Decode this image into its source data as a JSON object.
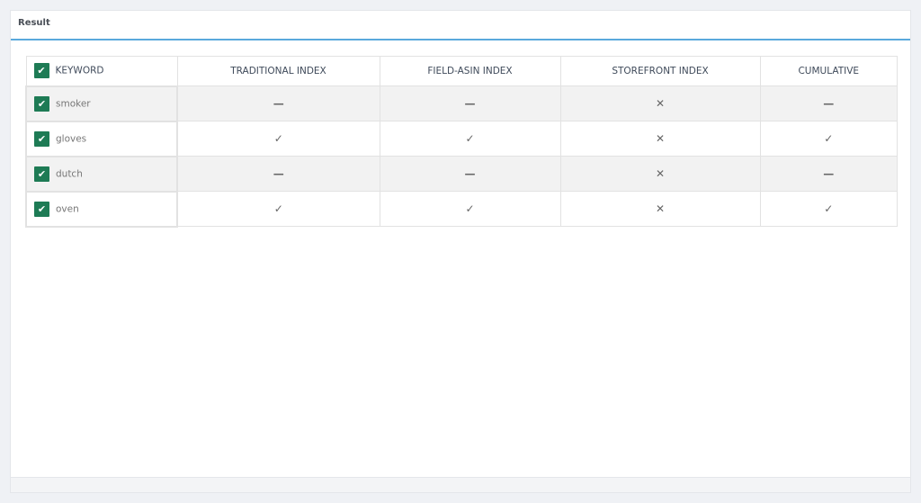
{
  "card": {
    "title": "Result"
  },
  "table": {
    "headers": [
      "KEYWORD",
      "TRADITIONAL INDEX",
      "FIELD-ASIN INDEX",
      "STOREFRONT INDEX",
      "CUMULATIVE"
    ],
    "rows": [
      {
        "keyword": "smoker",
        "checked": true,
        "traditional": "—",
        "field_asin": "—",
        "storefront": "✕",
        "cumulative": "—"
      },
      {
        "keyword": "gloves",
        "checked": true,
        "traditional": "✓",
        "field_asin": "✓",
        "storefront": "✕",
        "cumulative": "✓"
      },
      {
        "keyword": "dutch",
        "checked": true,
        "traditional": "—",
        "field_asin": "—",
        "storefront": "✕",
        "cumulative": "—"
      },
      {
        "keyword": "oven",
        "checked": true,
        "traditional": "✓",
        "field_asin": "✓",
        "storefront": "✕",
        "cumulative": "✓"
      }
    ],
    "select_all_checked": true
  },
  "colors": {
    "accent": "#5aa9dc",
    "checkbox": "#1e7b55"
  }
}
